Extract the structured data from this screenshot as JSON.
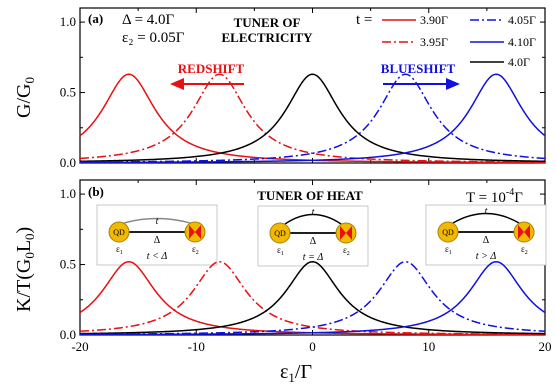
{
  "chart_data": [
    {
      "panel": "(a)",
      "type": "line",
      "ylabel": "G/G",
      "ylabel_sub": "0",
      "ylim": [
        0,
        1.1
      ],
      "xlim": [
        -20,
        20
      ],
      "yticks": [
        "0.0",
        "0.5",
        "1.0"
      ],
      "params": [
        "Δ = 4.0Γ",
        "ε₂ = 0.05Γ"
      ],
      "title": "TUNER OF ELECTRICITY",
      "title_lines": [
        "TUNER OF",
        "ELECTRICITY"
      ],
      "arrows": {
        "left": "REDSHIFT",
        "right": "BLUESHIFT"
      },
      "legend_prefix": "t =",
      "series": [
        {
          "name": "3.90Γ",
          "color": "#e81010",
          "dash": "solid",
          "peaks": [
            [
              -15.8,
              0.63
            ]
          ]
        },
        {
          "name": "3.95Γ",
          "color": "#e81010",
          "dash": "dashdot",
          "peaks": [
            [
              -8.0,
              0.63
            ]
          ]
        },
        {
          "name": "4.0Γ",
          "color": "#000000",
          "dash": "solid",
          "peaks": [
            [
              0.0,
              0.63
            ]
          ]
        },
        {
          "name": "4.05Γ",
          "color": "#1010e0",
          "dash": "dashdot",
          "peaks": [
            [
              8.0,
              0.63
            ]
          ]
        },
        {
          "name": "4.10Γ",
          "color": "#1010e0",
          "dash": "solid",
          "peaks": [
            [
              15.8,
              0.63
            ]
          ]
        }
      ]
    },
    {
      "panel": "(b)",
      "type": "line",
      "ylabel": "K/T(G",
      "ylabel_sub": "0",
      "ylabel_mid": "L",
      "ylabel_sub2": "0",
      "ylabel_end": ")",
      "ylim": [
        0,
        1.1
      ],
      "xlim": [
        -20,
        20
      ],
      "xticks": [
        "-20",
        "-10",
        "0",
        "10",
        "20"
      ],
      "yticks": [
        "0.0",
        "0.5",
        "1.0"
      ],
      "xlabel": "ε",
      "xlabel_sub": "1",
      "xlabel_end": "/Γ",
      "title": "TUNER OF HEAT",
      "temperature": "T = 10",
      "temperature_exp": "-4",
      "temperature_end": "Γ",
      "insets": [
        {
          "qd": "QD",
          "t": "t",
          "delta": "Δ",
          "e1": "ε",
          "e1_sub": "1",
          "e2": "ε",
          "e2_sub": "2",
          "cond": "t < Δ"
        },
        {
          "qd": "QD",
          "t": "t",
          "delta": "Δ",
          "e1": "ε",
          "e1_sub": "1",
          "e2": "ε",
          "e2_sub": "2",
          "cond": "t = Δ"
        },
        {
          "qd": "QD",
          "t": "t",
          "delta": "Δ",
          "e1": "ε",
          "e1_sub": "1",
          "e2": "ε",
          "e2_sub": "2",
          "cond": "t > Δ"
        }
      ],
      "series": [
        {
          "name": "3.90Γ",
          "color": "#e81010",
          "dash": "solid",
          "peaks": [
            [
              -15.8,
              0.52
            ]
          ]
        },
        {
          "name": "3.95Γ",
          "color": "#e81010",
          "dash": "dashdot",
          "peaks": [
            [
              -8.0,
              0.52
            ]
          ]
        },
        {
          "name": "4.0Γ",
          "color": "#000000",
          "dash": "solid",
          "peaks": [
            [
              0.0,
              0.52
            ]
          ]
        },
        {
          "name": "4.05Γ",
          "color": "#1010e0",
          "dash": "dashdot",
          "peaks": [
            [
              8.0,
              0.52
            ]
          ]
        },
        {
          "name": "4.10Γ",
          "color": "#1010e0",
          "dash": "solid",
          "peaks": [
            [
              15.8,
              0.52
            ]
          ]
        }
      ]
    }
  ]
}
